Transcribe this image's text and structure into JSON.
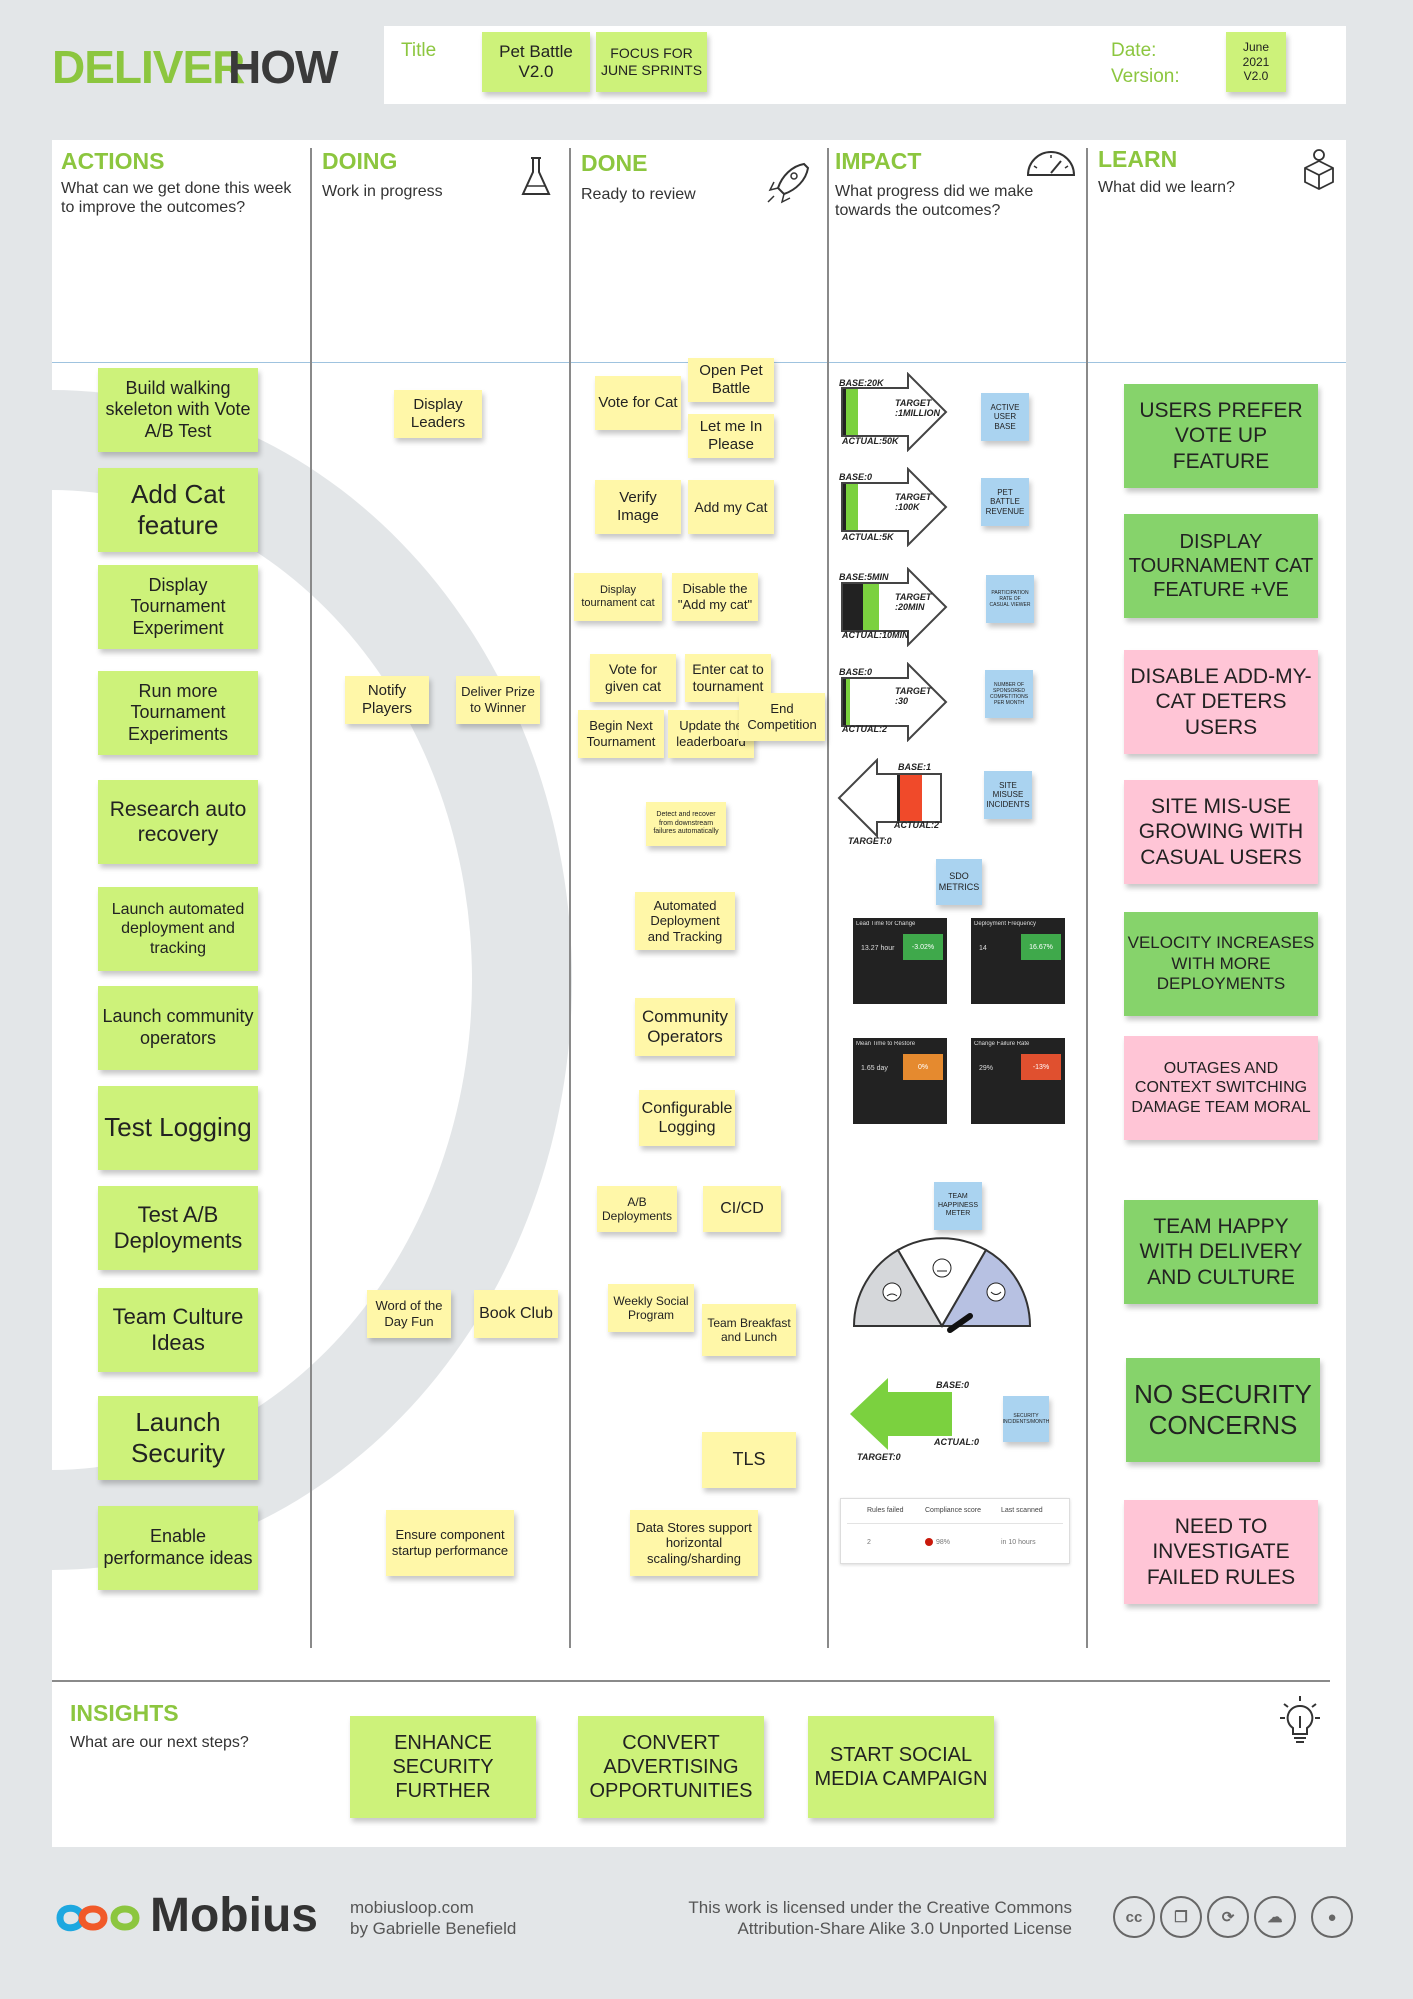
{
  "header": {
    "title_word1": "DELIVER",
    "title_word2": "HOW",
    "title_label": "Title",
    "title_value": "Pet Battle V2.0",
    "focus_note": "FOCUS FOR JUNE SPRINTS",
    "date_label": "Date:",
    "version_label": "Version:",
    "date_version_note": "June 2021 V2.0"
  },
  "columns": {
    "actions": {
      "title": "ACTIONS",
      "subtitle": "What can we get done this week to improve the outcomes?"
    },
    "doing": {
      "title": "DOING",
      "subtitle": "Work in progress"
    },
    "done": {
      "title": "DONE",
      "subtitle": "Ready to review"
    },
    "impact": {
      "title": "IMPACT",
      "subtitle": "What progress did we make towards the outcomes?"
    },
    "learn": {
      "title": "LEARN",
      "subtitle": "What did we learn?"
    }
  },
  "actions": [
    "Build walking skeleton with Vote A/B Test",
    "Add Cat feature",
    "Display Tournament Experiment",
    "Run more Tournament Experiments",
    "Research auto recovery",
    "Launch automated deployment and tracking",
    "Launch community operators",
    "Test Logging",
    "Test A/B Deployments",
    "Team Culture Ideas",
    "Launch Security",
    "Enable performance ideas"
  ],
  "doing": [
    "Display Leaders",
    "Notify Players",
    "Deliver Prize to Winner",
    "Word of the Day Fun",
    "Book Club",
    "Ensure component startup performance"
  ],
  "done": [
    "Vote for Cat",
    "Open Pet Battle",
    "Let me In Please",
    "Verify Image",
    "Add my Cat",
    "Display tournament cat",
    "Disable the \"Add my cat\"",
    "Vote for given cat",
    "Enter cat to tournament",
    "Begin Next Tournament",
    "Update the leaderboard",
    "End Competition",
    "Detect and recover from downstream failures automatically",
    "Automated Deployment and Tracking",
    "Community Operators",
    "Configurable Logging",
    "A/B Deployments",
    "CI/CD",
    "Weekly Social Program",
    "Team Breakfast and Lunch",
    "TLS",
    "Data Stores support horizontal scaling/sharding"
  ],
  "impact": {
    "metrics": [
      {
        "base": "BASE:20K",
        "target": "TARGET :1MILLION",
        "actual": "ACTUAL:50K",
        "label": "ACTIVE USER BASE"
      },
      {
        "base": "BASE:0",
        "target": "TARGET :100K",
        "actual": "ACTUAL:5K",
        "label": "PET BATTLE REVENUE"
      },
      {
        "base": "BASE:5MIN",
        "target": "TARGET :20MIN",
        "actual": "ACTUAL:10MIN",
        "label": "PARTICIPATION RATE OF CASUAL VIEWER"
      },
      {
        "base": "BASE:0",
        "target": "TARGET :30",
        "actual": "ACTUAL:2",
        "label": "NUMBER OF SPONSORED COMPETITIONS PER MONTH"
      },
      {
        "base": "BASE:1",
        "target": "TARGET:0",
        "actual": "ACTUAL:2",
        "label": "SITE MISUSE INCIDENTS"
      }
    ],
    "sdo_label": "SDO METRICS",
    "dashboards": [
      {
        "title": "Lead Time for Change",
        "value": "13.27 hour",
        "delta": "-3.02%"
      },
      {
        "title": "Deployment Frequency",
        "value": "14",
        "delta": "16.67%"
      },
      {
        "title": "Mean Time to Restore",
        "value": "1.65 day",
        "delta": "0%"
      },
      {
        "title": "Change Failure Rate",
        "value": "29%",
        "delta": "-13%"
      }
    ],
    "happiness_label": "TEAM HAPPINESS METER",
    "security": {
      "base": "BASE:0",
      "target": "TARGET:0",
      "actual": "ACTUAL:0",
      "label": "SECURITY INCIDENTS/MONTH"
    },
    "compliance": {
      "h1": "Rules failed",
      "h2": "Compliance score",
      "h3": "Last scanned",
      "v1": "2",
      "v2": "98%",
      "v3": "in 10 hours"
    }
  },
  "learn": [
    "USERS PREFER VOTE UP FEATURE",
    "DISPLAY TOURNAMENT CAT FEATURE +VE",
    "DISABLE ADD-MY-CAT DETERS USERS",
    "SITE MIS-USE GROWING WITH CASUAL USERS",
    "VELOCITY INCREASES WITH MORE DEPLOYMENTS",
    "OUTAGES AND CONTEXT SWITCHING DAMAGE TEAM MORAL",
    "TEAM HAPPY WITH DELIVERY AND CULTURE",
    "NO SECURITY CONCERNS",
    "NEED TO INVESTIGATE FAILED RULES"
  ],
  "insights": {
    "title": "INSIGHTS",
    "subtitle": "What are our next steps?",
    "notes": [
      "ENHANCE SECURITY FURTHER",
      "CONVERT ADVERTISING OPPORTUNITIES",
      "START SOCIAL MEDIA CAMPAIGN"
    ]
  },
  "footer": {
    "brand": "Mobius",
    "site": "mobiusloop.com",
    "author": "by Gabrielle Benefield",
    "license_line1": "This work is licensed under the Creative Commons",
    "license_line2": "Attribution-Share Alike 3.0 Unported License"
  },
  "colors": {
    "green_accent": "#8cc63f",
    "note_yellow": "#fff7a8",
    "note_lime": "#cdf27a",
    "note_green": "#86d36b",
    "note_pink": "#ffc5d6",
    "note_blue": "#aad3f0"
  }
}
